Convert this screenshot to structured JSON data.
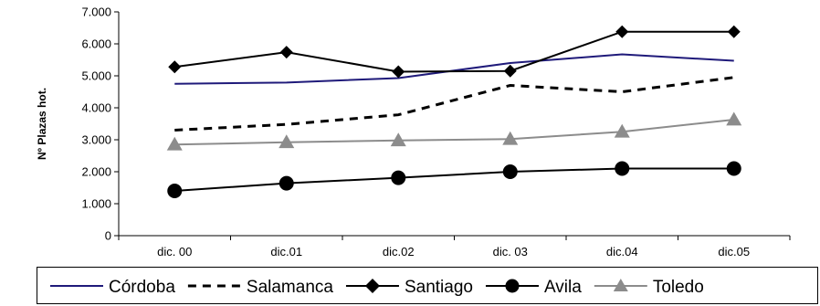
{
  "chart_data": {
    "type": "line",
    "categories": [
      "dic. 00",
      "dic.01",
      "dic.02",
      "dic. 03",
      "dic.04",
      "dic.05"
    ],
    "ylabel": "Nº Plazas hot.",
    "ylim": [
      0,
      7000
    ],
    "yticks": [
      "0",
      "1.000",
      "2.000",
      "3.000",
      "4.000",
      "5.000",
      "6.000",
      "7.000"
    ],
    "grid": false,
    "legend_position": "bottom",
    "series": [
      {
        "name": "Córdoba",
        "values": [
          4750,
          4790,
          4930,
          5400,
          5670,
          5470
        ],
        "color": "#1f1a7a",
        "style": "solid",
        "marker": "none"
      },
      {
        "name": "Salamanca",
        "values": [
          3300,
          3480,
          3780,
          4700,
          4500,
          4950
        ],
        "color": "#000000",
        "style": "dashed",
        "marker": "none"
      },
      {
        "name": "Santiago",
        "values": [
          5280,
          5740,
          5130,
          5150,
          6380,
          6380
        ],
        "color": "#000000",
        "style": "solid",
        "marker": "diamond"
      },
      {
        "name": "Avila",
        "values": [
          1400,
          1640,
          1810,
          2000,
          2100,
          2100
        ],
        "color": "#000000",
        "style": "solid",
        "marker": "circle"
      },
      {
        "name": "Toledo",
        "values": [
          2850,
          2920,
          2980,
          3020,
          3250,
          3630
        ],
        "color": "#8c8c8c",
        "style": "solid",
        "marker": "triangle"
      }
    ]
  }
}
